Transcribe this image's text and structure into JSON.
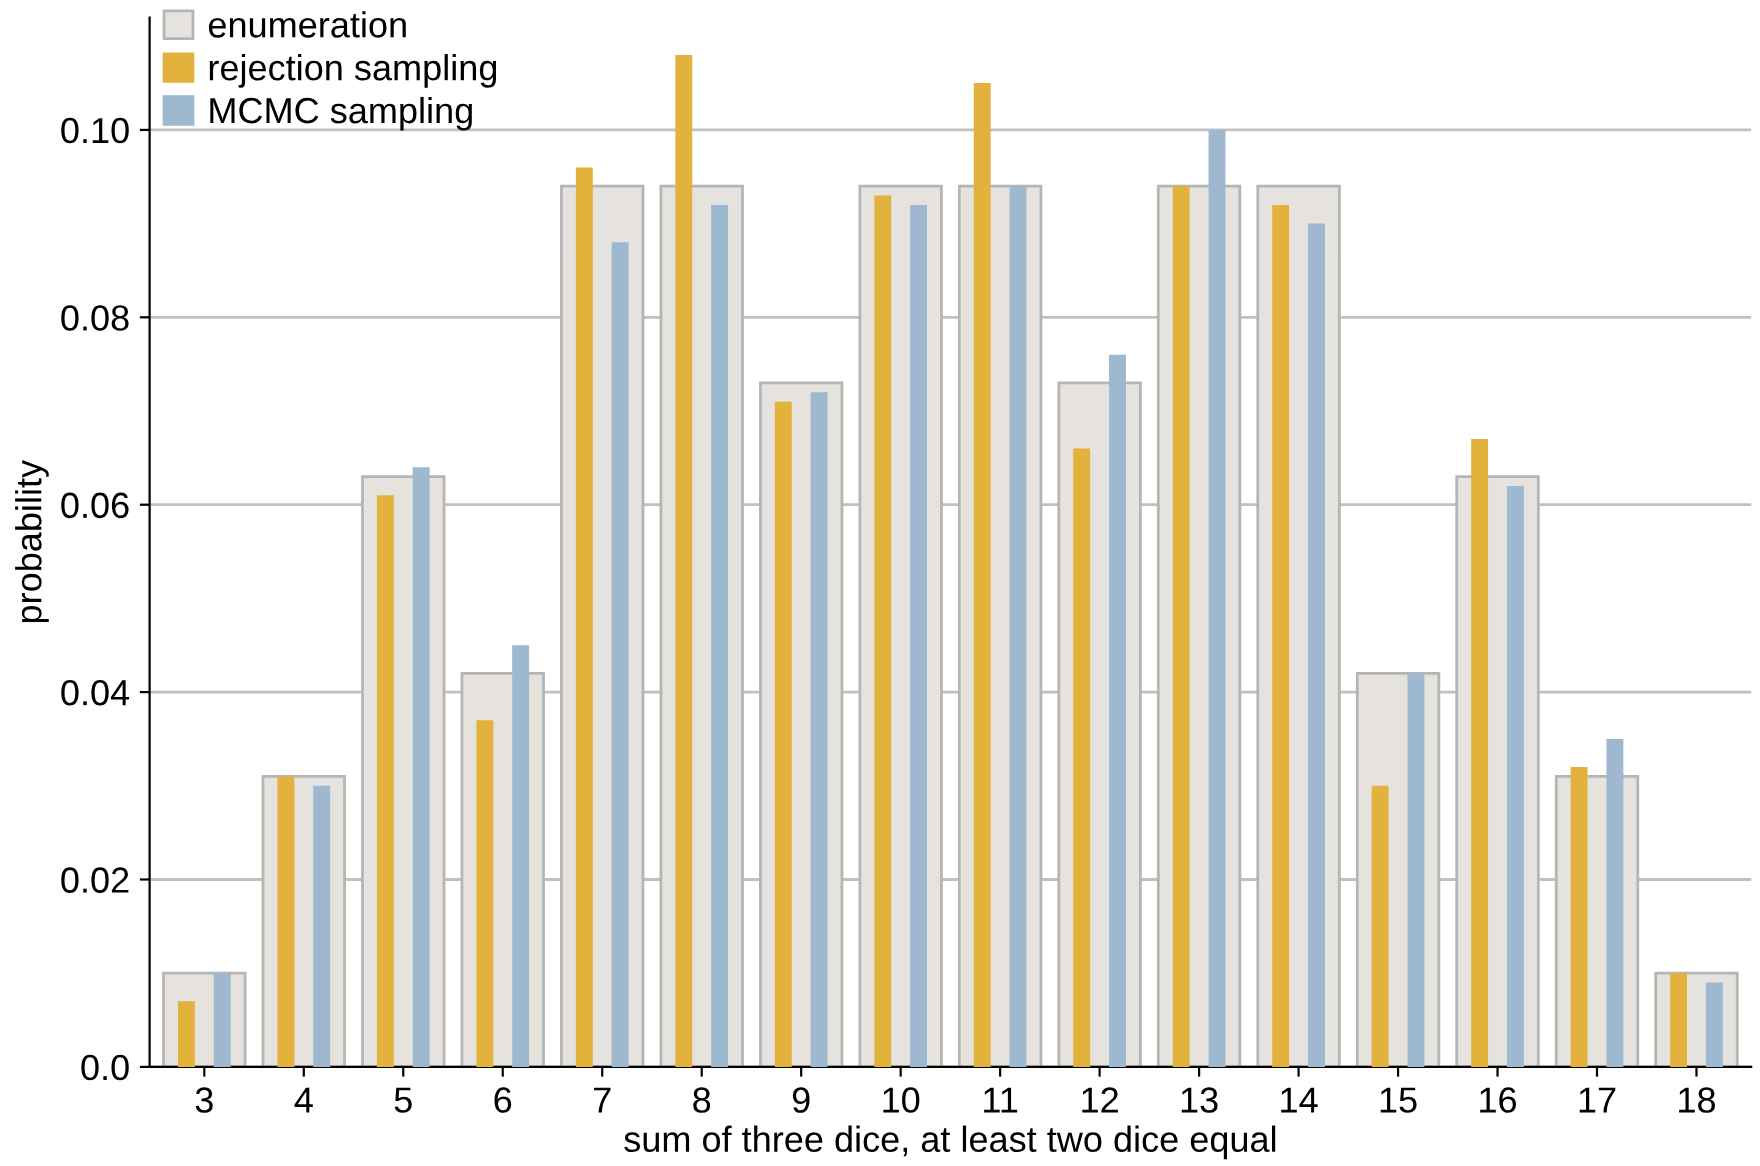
{
  "chart_data": {
    "type": "bar",
    "xlabel": "sum of three dice, at least two dice equal",
    "ylabel": "probability",
    "categories": [
      "3",
      "4",
      "5",
      "6",
      "7",
      "8",
      "9",
      "10",
      "11",
      "12",
      "13",
      "14",
      "15",
      "16",
      "17",
      "18"
    ],
    "series": [
      {
        "name": "enumeration",
        "color": "#e6e3de",
        "values": [
          0.01,
          0.031,
          0.063,
          0.042,
          0.094,
          0.094,
          0.073,
          0.094,
          0.094,
          0.073,
          0.094,
          0.094,
          0.042,
          0.063,
          0.031,
          0.01
        ]
      },
      {
        "name": "rejection sampling",
        "color": "#e3b23c",
        "values": [
          0.007,
          0.031,
          0.061,
          0.037,
          0.096,
          0.108,
          0.071,
          0.093,
          0.105,
          0.066,
          0.094,
          0.092,
          0.03,
          0.067,
          0.032,
          0.01
        ]
      },
      {
        "name": "MCMC sampling",
        "color": "#9db8cf",
        "values": [
          0.01,
          0.03,
          0.064,
          0.045,
          0.088,
          0.092,
          0.072,
          0.092,
          0.094,
          0.076,
          0.1,
          0.09,
          0.042,
          0.062,
          0.035,
          0.009
        ]
      }
    ],
    "ylim": [
      0,
      0.112
    ],
    "yticks": [
      {
        "value": 0,
        "label": "0.0"
      },
      0.02,
      0.04,
      0.06,
      0.08,
      {
        "value": 0.1,
        "label": "0.10"
      }
    ],
    "grid": "y",
    "legend": "top left"
  }
}
